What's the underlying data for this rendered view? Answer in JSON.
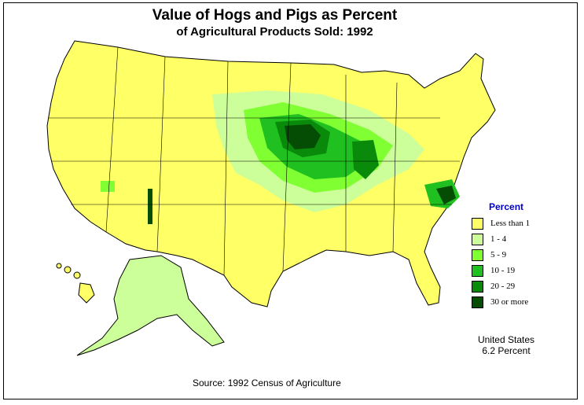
{
  "title": "Value of Hogs and Pigs as Percent",
  "subtitle": "of Agricultural Products Sold:  1992",
  "legend": {
    "title": "Percent",
    "items": [
      {
        "label": "Less than 1",
        "color": "#ffff66"
      },
      {
        "label": "1  -  4",
        "color": "#ccff99"
      },
      {
        "label": "5  -  9",
        "color": "#80ff33"
      },
      {
        "label": "10  -  19",
        "color": "#20c020"
      },
      {
        "label": "20  -  29",
        "color": "#0a8a0a"
      },
      {
        "label": "30 or more",
        "color": "#054d05"
      }
    ]
  },
  "national": {
    "line1": "United States",
    "line2": "6.2 Percent"
  },
  "source": "Source:  1992 Census of Agriculture"
}
